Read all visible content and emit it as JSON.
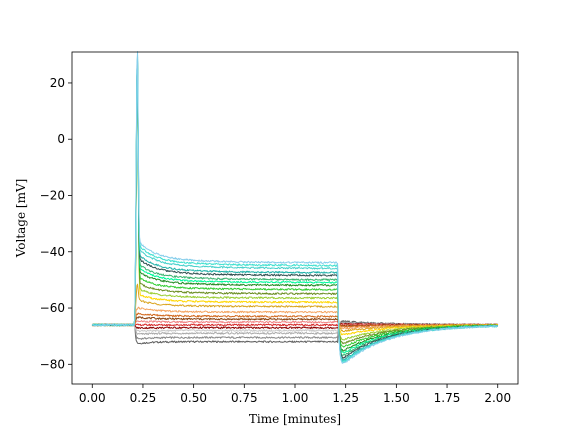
{
  "chart_data": {
    "type": "line",
    "title": "",
    "xlabel": "Time [minutes]",
    "ylabel": "Voltage [mV]",
    "xlim": [
      -0.1,
      2.1
    ],
    "ylim": [
      -87,
      31
    ],
    "grid": false,
    "legend": "none",
    "x_ticks": [
      0.0,
      0.25,
      0.5,
      0.75,
      1.0,
      1.25,
      1.5,
      1.75,
      2.0
    ],
    "x_tick_labels": [
      "0.00",
      "0.25",
      "0.50",
      "0.75",
      "1.00",
      "1.25",
      "1.50",
      "1.75",
      "2.00"
    ],
    "y_ticks": [
      -80,
      -60,
      -40,
      -20,
      0,
      20
    ],
    "y_tick_labels": [
      "−80",
      "−60",
      "−40",
      "−20",
      "0",
      "20"
    ],
    "time_range": [
      0.0,
      2.0
    ],
    "step_on": 0.21,
    "step_off": 1.21,
    "series": [
      {
        "color": "#606060",
        "rest": -66.0,
        "plateau": -72.0,
        "rebound": -64.5
      },
      {
        "color": "#888888",
        "rest": -66.0,
        "plateau": -70.5,
        "rebound": -65.0
      },
      {
        "color": "#aaaaaa",
        "rest": -66.0,
        "plateau": -69.0,
        "rebound": -65.2
      },
      {
        "color": "#c8c8c8",
        "rest": -66.0,
        "plateau": -68.0,
        "rebound": -65.4
      },
      {
        "color": "#8b0000",
        "rest": -66.0,
        "plateau": -67.0,
        "rebound": -65.6
      },
      {
        "color": "#d62728",
        "rest": -66.0,
        "plateau": -66.0,
        "rebound": -65.8
      },
      {
        "color": "#f08080",
        "rest": -66.0,
        "plateau": -65.0,
        "rebound": -66.0
      },
      {
        "color": "#8b4513",
        "rest": -66.0,
        "plateau": -64.0,
        "rebound": -66.3
      },
      {
        "color": "#d2691e",
        "rest": -66.0,
        "plateau": -63.0,
        "rebound": -66.8
      },
      {
        "color": "#f4a460",
        "rest": -66.0,
        "plateau": -61.5,
        "rebound": -67.5
      },
      {
        "color": "#daa520",
        "rest": -66.0,
        "plateau": -59.5,
        "rebound": -68.5,
        "spike": -53
      },
      {
        "color": "#ffd700",
        "rest": -66.0,
        "plateau": -58.0,
        "rebound": -70.0,
        "spike": 26
      },
      {
        "color": "#9acd32",
        "rest": -66.0,
        "plateau": -56.5,
        "rebound": -72.0,
        "spike": 26
      },
      {
        "color": "#6b8e23",
        "rest": -66.0,
        "plateau": -55.0,
        "rebound": -73.5,
        "spike": 26
      },
      {
        "color": "#32cd32",
        "rest": -66.0,
        "plateau": -53.5,
        "rebound": -75.0,
        "spike": 26
      },
      {
        "color": "#228b22",
        "rest": -66.0,
        "plateau": -52.0,
        "rebound": -76.5,
        "spike": 26
      },
      {
        "color": "#00fa9a",
        "rest": -66.0,
        "plateau": -51.0,
        "rebound": -77.5,
        "spike": 26
      },
      {
        "color": "#3cb371",
        "rest": -66.0,
        "plateau": -50.0,
        "rebound": -78.5,
        "spike": 26
      },
      {
        "color": "#2f4f4f",
        "rest": -66.0,
        "plateau": -48.5,
        "rebound": -79.5,
        "spike": 26
      },
      {
        "color": "#20b2aa",
        "rest": -66.0,
        "plateau": -47.5,
        "rebound": -80.5,
        "spike": 26
      },
      {
        "color": "#48d1cc",
        "rest": -66.0,
        "plateau": -46.0,
        "rebound": -81.0,
        "spike": 27
      },
      {
        "color": "#40e0d0",
        "rest": -66.0,
        "plateau": -45.0,
        "rebound": -81.5,
        "spike": 27
      },
      {
        "color": "#87ceeb",
        "rest": -66.0,
        "plateau": -44.0,
        "rebound": -82.0,
        "spike": 28
      }
    ]
  }
}
